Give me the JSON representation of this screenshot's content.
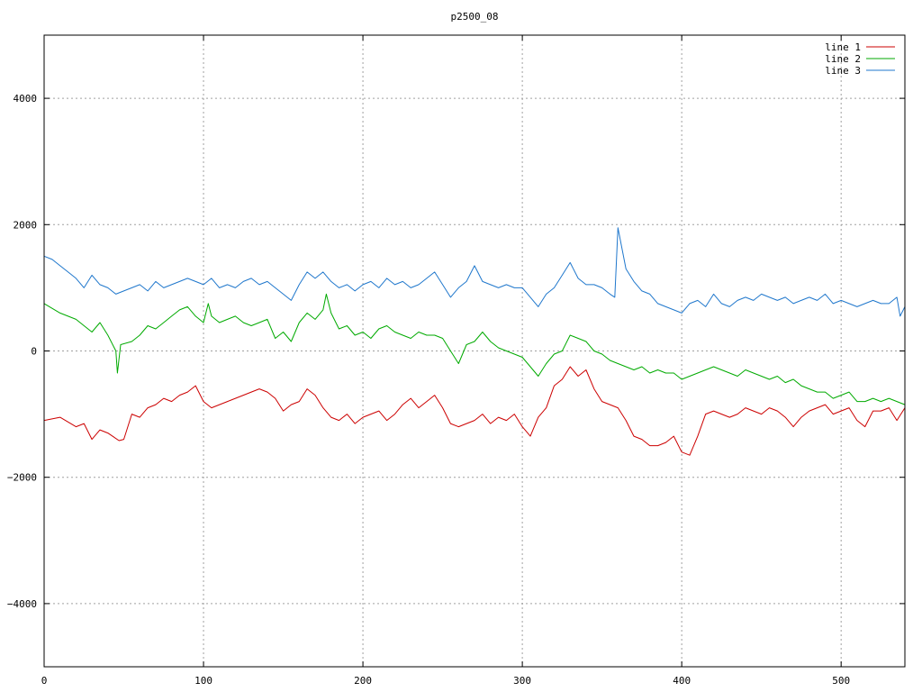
{
  "chart_data": {
    "type": "line",
    "title": "p2500_08",
    "xlabel": "",
    "ylabel": "",
    "xlim": [
      0,
      540
    ],
    "ylim": [
      -5000,
      5000
    ],
    "x_ticks": [
      0,
      100,
      200,
      300,
      400,
      500
    ],
    "y_ticks": [
      -4000,
      -2000,
      0,
      2000,
      4000
    ],
    "grid": true,
    "legend_position": "top-right",
    "series": [
      {
        "name": "line 1",
        "color": "#cc0000",
        "x": [
          0,
          10,
          20,
          25,
          30,
          35,
          40,
          47,
          50,
          55,
          60,
          65,
          70,
          75,
          80,
          85,
          90,
          95,
          100,
          105,
          110,
          115,
          120,
          125,
          130,
          135,
          140,
          145,
          150,
          155,
          160,
          165,
          170,
          175,
          180,
          185,
          190,
          195,
          200,
          205,
          210,
          215,
          220,
          225,
          230,
          235,
          240,
          245,
          250,
          255,
          260,
          265,
          270,
          275,
          280,
          285,
          290,
          295,
          300,
          305,
          310,
          315,
          320,
          325,
          330,
          335,
          340,
          345,
          350,
          355,
          360,
          365,
          370,
          375,
          380,
          385,
          390,
          395,
          400,
          405,
          410,
          415,
          420,
          425,
          430,
          435,
          440,
          445,
          450,
          455,
          460,
          465,
          470,
          475,
          480,
          485,
          490,
          495,
          500,
          505,
          510,
          515,
          520,
          525,
          530,
          535,
          540
        ],
        "values": [
          -1100,
          -1050,
          -1200,
          -1150,
          -1400,
          -1250,
          -1300,
          -1420,
          -1400,
          -1000,
          -1050,
          -900,
          -850,
          -750,
          -800,
          -700,
          -650,
          -550,
          -800,
          -900,
          -850,
          -800,
          -750,
          -700,
          -650,
          -600,
          -650,
          -750,
          -950,
          -850,
          -800,
          -600,
          -700,
          -900,
          -1050,
          -1100,
          -1000,
          -1150,
          -1050,
          -1000,
          -950,
          -1100,
          -1000,
          -850,
          -750,
          -900,
          -800,
          -700,
          -900,
          -1150,
          -1200,
          -1150,
          -1100,
          -1000,
          -1150,
          -1050,
          -1100,
          -1000,
          -1200,
          -1350,
          -1050,
          -900,
          -550,
          -450,
          -250,
          -400,
          -300,
          -600,
          -800,
          -850,
          -900,
          -1100,
          -1350,
          -1400,
          -1500,
          -1500,
          -1450,
          -1350,
          -1600,
          -1650,
          -1350,
          -1000,
          -950,
          -1000,
          -1050,
          -1000,
          -900,
          -950,
          -1000,
          -900,
          -950,
          -1050,
          -1200,
          -1050,
          -950,
          -900,
          -850,
          -1000,
          -950,
          -900,
          -1100,
          -1200,
          -950,
          -950,
          -900,
          -1100,
          -900
        ]
      },
      {
        "name": "line 2",
        "color": "#00aa00",
        "x": [
          0,
          10,
          20,
          25,
          30,
          35,
          40,
          45,
          46,
          48,
          55,
          60,
          65,
          70,
          75,
          80,
          85,
          90,
          95,
          100,
          103,
          105,
          110,
          115,
          120,
          125,
          130,
          135,
          140,
          145,
          150,
          155,
          160,
          165,
          170,
          175,
          177,
          180,
          185,
          190,
          195,
          200,
          205,
          210,
          215,
          220,
          225,
          230,
          235,
          240,
          245,
          250,
          255,
          260,
          265,
          270,
          275,
          280,
          285,
          290,
          295,
          300,
          305,
          310,
          315,
          320,
          325,
          330,
          335,
          340,
          345,
          350,
          355,
          360,
          365,
          370,
          375,
          380,
          385,
          390,
          395,
          400,
          405,
          410,
          415,
          420,
          425,
          430,
          435,
          440,
          445,
          450,
          455,
          460,
          465,
          470,
          475,
          480,
          485,
          490,
          495,
          500,
          505,
          510,
          515,
          520,
          525,
          530,
          535,
          540
        ],
        "values": [
          750,
          600,
          500,
          400,
          300,
          450,
          250,
          0,
          -350,
          100,
          150,
          250,
          400,
          350,
          450,
          550,
          650,
          700,
          550,
          450,
          750,
          550,
          450,
          500,
          550,
          450,
          400,
          450,
          500,
          200,
          300,
          150,
          450,
          600,
          500,
          650,
          900,
          600,
          350,
          400,
          250,
          300,
          200,
          350,
          400,
          300,
          250,
          200,
          300,
          250,
          250,
          200,
          0,
          -200,
          100,
          150,
          300,
          150,
          50,
          0,
          -50,
          -100,
          -250,
          -400,
          -200,
          -50,
          0,
          250,
          200,
          150,
          0,
          -50,
          -150,
          -200,
          -250,
          -300,
          -250,
          -350,
          -300,
          -350,
          -350,
          -450,
          -400,
          -350,
          -300,
          -250,
          -300,
          -350,
          -400,
          -300,
          -350,
          -400,
          -450,
          -400,
          -500,
          -450,
          -550,
          -600,
          -650,
          -650,
          -750,
          -700,
          -650,
          -800,
          -800,
          -750,
          -800,
          -750,
          -800,
          -850
        ]
      },
      {
        "name": "line 3",
        "color": "#1f77cc",
        "x": [
          0,
          5,
          10,
          15,
          20,
          25,
          30,
          35,
          40,
          45,
          50,
          55,
          60,
          65,
          70,
          75,
          80,
          85,
          90,
          95,
          100,
          105,
          110,
          115,
          120,
          125,
          130,
          135,
          140,
          145,
          150,
          155,
          160,
          165,
          170,
          175,
          180,
          185,
          190,
          195,
          200,
          205,
          210,
          215,
          220,
          225,
          230,
          235,
          240,
          245,
          250,
          255,
          260,
          265,
          270,
          275,
          280,
          285,
          290,
          295,
          300,
          305,
          310,
          315,
          320,
          325,
          330,
          335,
          340,
          345,
          350,
          355,
          358,
          360,
          365,
          370,
          375,
          380,
          385,
          390,
          395,
          400,
          405,
          410,
          415,
          420,
          425,
          430,
          435,
          440,
          445,
          450,
          455,
          460,
          465,
          470,
          475,
          480,
          485,
          490,
          495,
          500,
          505,
          510,
          515,
          520,
          525,
          530,
          535,
          537,
          540
        ],
        "values": [
          1500,
          1450,
          1350,
          1250,
          1150,
          1000,
          1200,
          1050,
          1000,
          900,
          950,
          1000,
          1050,
          950,
          1100,
          1000,
          1050,
          1100,
          1150,
          1100,
          1050,
          1150,
          1000,
          1050,
          1000,
          1100,
          1150,
          1050,
          1100,
          1000,
          900,
          800,
          1050,
          1250,
          1150,
          1250,
          1100,
          1000,
          1050,
          950,
          1050,
          1100,
          1000,
          1150,
          1050,
          1100,
          1000,
          1050,
          1150,
          1250,
          1050,
          850,
          1000,
          1100,
          1350,
          1100,
          1050,
          1000,
          1050,
          1000,
          1000,
          850,
          700,
          900,
          1000,
          1200,
          1400,
          1150,
          1050,
          1050,
          1000,
          900,
          850,
          1950,
          1300,
          1100,
          950,
          900,
          750,
          700,
          650,
          600,
          750,
          800,
          700,
          900,
          750,
          700,
          800,
          850,
          800,
          900,
          850,
          800,
          850,
          750,
          800,
          850,
          800,
          900,
          750,
          800,
          750,
          700,
          750,
          800,
          750,
          750,
          850,
          550,
          700
        ]
      }
    ]
  }
}
